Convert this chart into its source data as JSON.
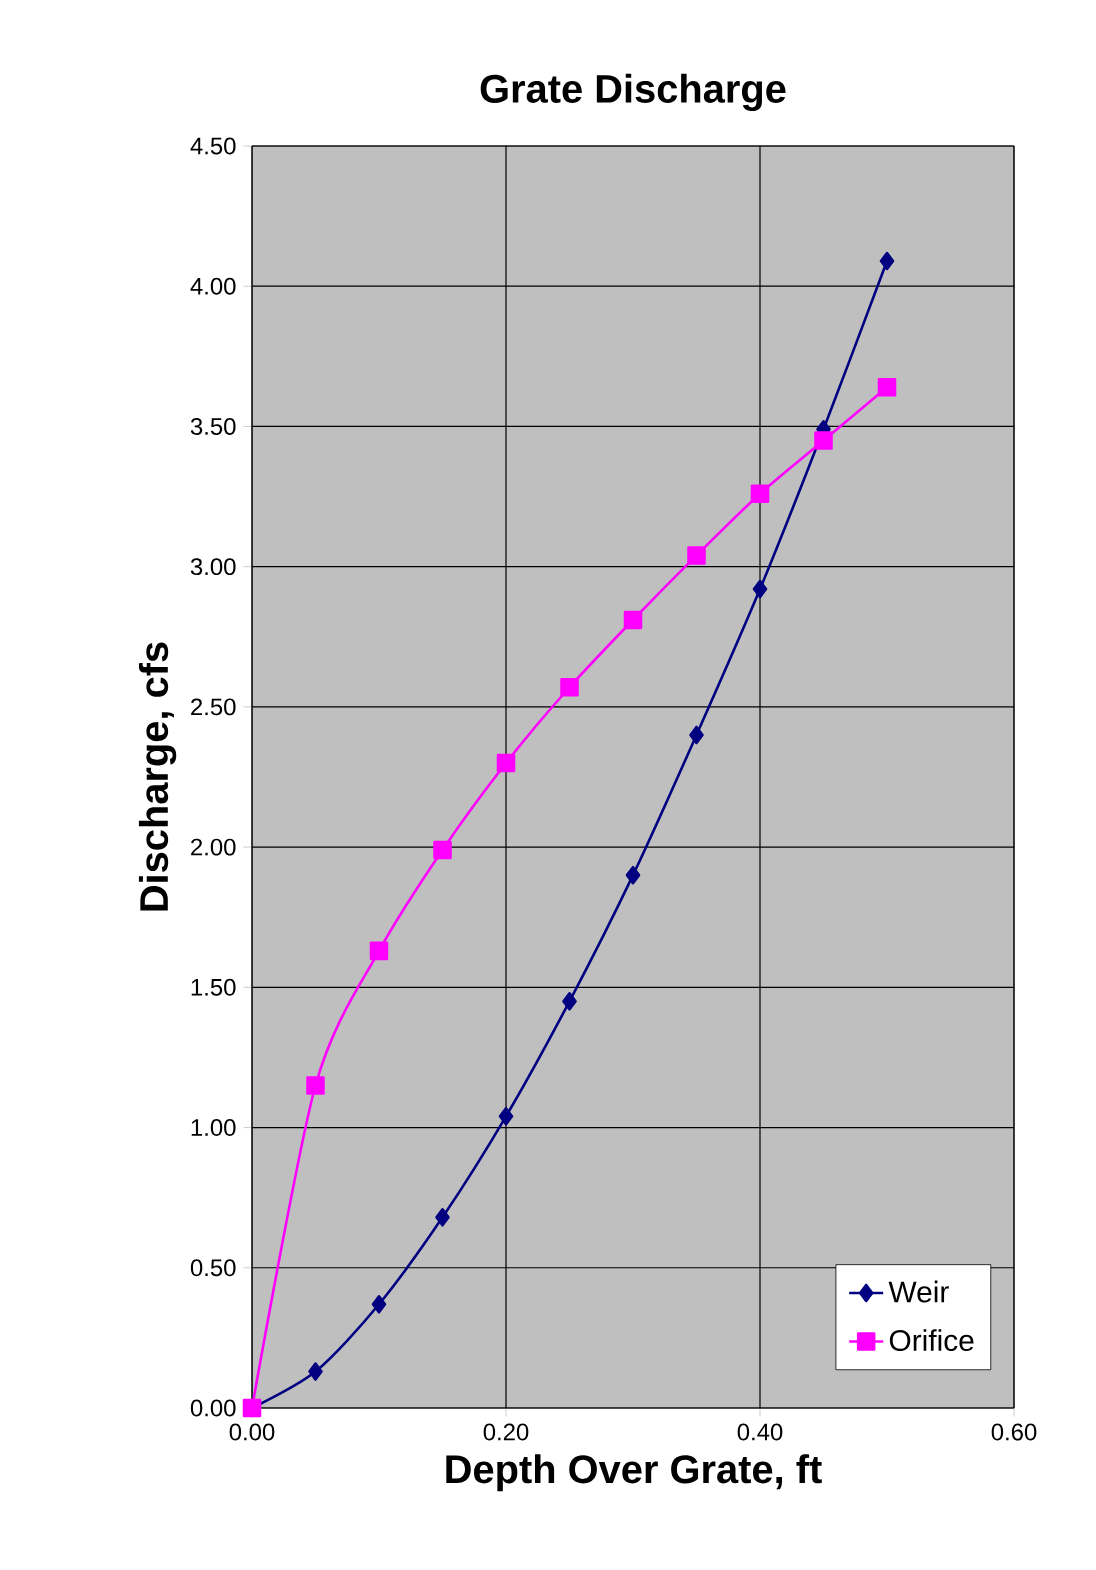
{
  "chart_data": {
    "type": "line",
    "title": "Grate Discharge",
    "xlabel": "Depth Over Grate, ft",
    "ylabel": "Discharge, cfs",
    "x": [
      0,
      0.05,
      0.1,
      0.15,
      0.2,
      0.25,
      0.3,
      0.35,
      0.4,
      0.45,
      0.5
    ],
    "series": [
      {
        "name": "Weir",
        "color": "#000080",
        "marker": "diamond",
        "values": [
          0,
          0.13,
          0.37,
          0.68,
          1.04,
          1.45,
          1.9,
          2.4,
          2.92,
          3.49,
          4.09
        ]
      },
      {
        "name": "Orifice",
        "color": "#ff00ff",
        "marker": "square",
        "values": [
          0,
          1.15,
          1.63,
          1.99,
          2.3,
          2.57,
          2.81,
          3.04,
          3.26,
          3.45,
          3.64
        ]
      }
    ],
    "xlim": [
      0,
      0.6
    ],
    "ylim": [
      0,
      4.5
    ],
    "xticks": [
      {
        "value": 0,
        "label": "0.00"
      },
      {
        "value": 0.2,
        "label": "0.20"
      },
      {
        "value": 0.4,
        "label": "0.40"
      },
      {
        "value": 0.6,
        "label": "0.60"
      }
    ],
    "yticks": [
      {
        "value": 0,
        "label": "0.00"
      },
      {
        "value": 0.5,
        "label": "0.50"
      },
      {
        "value": 1,
        "label": "1.00"
      },
      {
        "value": 1.5,
        "label": "1.50"
      },
      {
        "value": 2,
        "label": "2.00"
      },
      {
        "value": 2.5,
        "label": "2.50"
      },
      {
        "value": 3,
        "label": "3.00"
      },
      {
        "value": 3.5,
        "label": "3.50"
      },
      {
        "value": 4,
        "label": "4.00"
      },
      {
        "value": 4.5,
        "label": "4.50"
      }
    ],
    "grid": true,
    "legend": "bottom right",
    "line_style": "solid"
  }
}
